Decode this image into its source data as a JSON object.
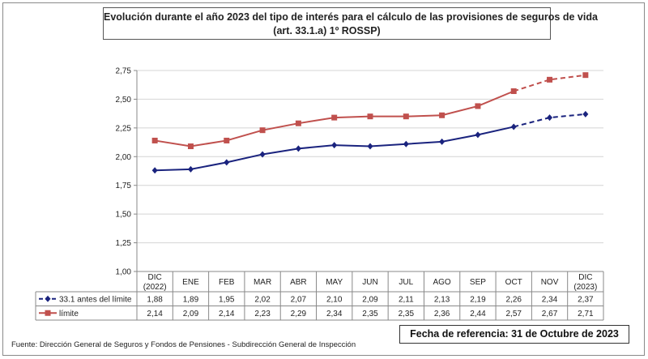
{
  "chart_data": {
    "type": "line",
    "title": "Evolución durante el año 2023 del tipo de interés para el cálculo de las provisiones de seguros de vida",
    "subtitle": "(art. 33.1.a) 1º ROSSP)",
    "categories": [
      [
        "DIC",
        "(2022)"
      ],
      [
        "ENE"
      ],
      [
        "FEB"
      ],
      [
        "MAR"
      ],
      [
        "ABR"
      ],
      [
        "MAY"
      ],
      [
        "JUN"
      ],
      [
        "JUL"
      ],
      [
        "AGO"
      ],
      [
        "SEP"
      ],
      [
        "OCT"
      ],
      [
        "NOV"
      ],
      [
        "DIC",
        "(2023)"
      ]
    ],
    "ylim": [
      1.0,
      2.75
    ],
    "yticks": [
      "1,00",
      "1,25",
      "1,50",
      "1,75",
      "2,00",
      "2,25",
      "2,50",
      "2,75"
    ],
    "grid": true,
    "series": [
      {
        "name": "33.1 antes del límite",
        "color": "#1a237e",
        "marker": "diamond",
        "line_style": "solid; dashed from OCT to DIC (2023)",
        "values": [
          1.88,
          1.89,
          1.95,
          2.02,
          2.07,
          2.1,
          2.09,
          2.11,
          2.13,
          2.19,
          2.26,
          2.34,
          2.37
        ],
        "labels": [
          "1,88",
          "1,89",
          "1,95",
          "2,02",
          "2,07",
          "2,10",
          "2,09",
          "2,11",
          "2,13",
          "2,19",
          "2,26",
          "2,34",
          "2,37"
        ]
      },
      {
        "name": "límite",
        "color": "#c0504d",
        "marker": "square",
        "line_style": "solid; dashed from OCT to DIC (2023)",
        "values": [
          2.14,
          2.09,
          2.14,
          2.23,
          2.29,
          2.34,
          2.35,
          2.35,
          2.36,
          2.44,
          2.57,
          2.67,
          2.71
        ],
        "labels": [
          "2,14",
          "2,09",
          "2,14",
          "2,23",
          "2,29",
          "2,34",
          "2,35",
          "2,35",
          "2,36",
          "2,44",
          "2,57",
          "2,67",
          "2,71"
        ]
      }
    ],
    "data_table": true,
    "legend": "in data table rows"
  },
  "reference_date": "Fecha de referencia: 31 de Octubre de 2023",
  "source": "Fuente: Dirección General de Seguros y Fondos de Pensiones - Subdirección General de Inspección"
}
